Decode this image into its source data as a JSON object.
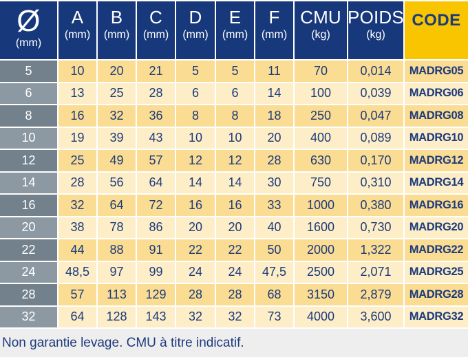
{
  "chart_data": {
    "type": "table",
    "columns": [
      {
        "id": "diameter",
        "main": "Ø",
        "sub": "(mm)"
      },
      {
        "id": "a",
        "main": "A",
        "sub": "(mm)"
      },
      {
        "id": "b",
        "main": "B",
        "sub": "(mm)"
      },
      {
        "id": "c",
        "main": "C",
        "sub": "(mm)"
      },
      {
        "id": "d",
        "main": "D",
        "sub": "(mm)"
      },
      {
        "id": "e",
        "main": "E",
        "sub": "(mm)"
      },
      {
        "id": "f",
        "main": "F",
        "sub": "(mm)"
      },
      {
        "id": "cmu",
        "main": "CMU",
        "sub": "(kg)"
      },
      {
        "id": "poids",
        "main": "POIDS",
        "sub": "(kg)"
      },
      {
        "id": "code",
        "main": "CODE",
        "sub": ""
      }
    ],
    "rows": [
      [
        "5",
        "10",
        "20",
        "21",
        "5",
        "5",
        "11",
        "70",
        "0,014",
        "MADRG05"
      ],
      [
        "6",
        "13",
        "25",
        "28",
        "6",
        "6",
        "14",
        "100",
        "0,039",
        "MADRG06"
      ],
      [
        "8",
        "16",
        "32",
        "36",
        "8",
        "8",
        "18",
        "250",
        "0,047",
        "MADRG08"
      ],
      [
        "10",
        "19",
        "39",
        "43",
        "10",
        "10",
        "20",
        "400",
        "0,089",
        "MADRG10"
      ],
      [
        "12",
        "25",
        "49",
        "57",
        "12",
        "12",
        "28",
        "630",
        "0,170",
        "MADRG12"
      ],
      [
        "14",
        "28",
        "56",
        "64",
        "14",
        "14",
        "30",
        "750",
        "0,310",
        "MADRG14"
      ],
      [
        "16",
        "32",
        "64",
        "72",
        "16",
        "16",
        "33",
        "1000",
        "0,380",
        "MADRG16"
      ],
      [
        "20",
        "38",
        "78",
        "86",
        "20",
        "20",
        "40",
        "1600",
        "0,730",
        "MADRG20"
      ],
      [
        "22",
        "44",
        "88",
        "91",
        "22",
        "22",
        "50",
        "2000",
        "1,322",
        "MADRG22"
      ],
      [
        "24",
        "48,5",
        "97",
        "99",
        "24",
        "24",
        "47,5",
        "2500",
        "2,071",
        "MADRG25"
      ],
      [
        "28",
        "57",
        "113",
        "129",
        "28",
        "28",
        "68",
        "3150",
        "2,879",
        "MADRG28"
      ],
      [
        "32",
        "64",
        "128",
        "143",
        "32",
        "32",
        "73",
        "4000",
        "3,600",
        "MADRG32"
      ]
    ],
    "footnote": "Non garantie levage. CMU à titre indicatif."
  },
  "colors": {
    "header_navy": "#17387B",
    "text_navy": "#1C3A7C",
    "code_gold": "#F8C500",
    "row_dark_yellow": "#FADC93",
    "row_light_cream": "#FDEEC8",
    "dia_dark_gray": "#73818C",
    "dia_light_gray": "#8C99A2",
    "footer_gray": "#EEEEEE",
    "gridline_white": "#FFFFFF"
  }
}
